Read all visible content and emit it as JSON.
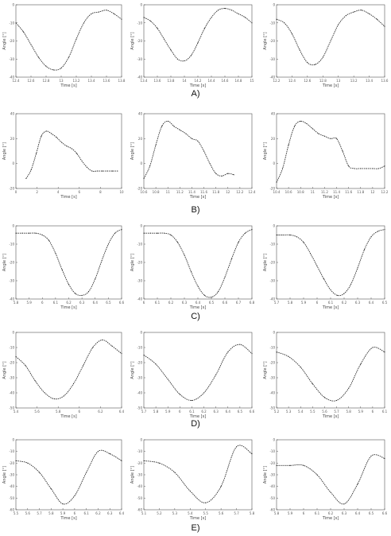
{
  "figure": {
    "row_labels": [
      "A)",
      "B)",
      "C)",
      "D)",
      "E)"
    ]
  },
  "chart_data": [
    {
      "id": "A1",
      "type": "line",
      "row": 0,
      "col": 0,
      "xlabel": "Time [s]",
      "ylabel": "Angle [°]",
      "xlim": [
        12.4,
        13.8
      ],
      "ylim": [
        -40,
        0
      ],
      "xticks": [
        "12.4",
        "12.6",
        "12.8",
        "13",
        "13.2",
        "13.4",
        "13.6",
        "13.8"
      ],
      "yticks": [
        "0",
        "-10",
        "-20",
        "-30",
        "-40"
      ],
      "x": [
        12.4,
        12.5,
        12.6,
        12.7,
        12.8,
        12.9,
        13.0,
        13.1,
        13.2,
        13.3,
        13.4,
        13.5,
        13.6,
        13.7,
        13.8
      ],
      "y": [
        -10,
        -15,
        -22,
        -29,
        -34,
        -36,
        -35,
        -29,
        -19,
        -10,
        -5,
        -4,
        -3,
        -5,
        -8
      ]
    },
    {
      "id": "A2",
      "type": "line",
      "row": 0,
      "col": 1,
      "xlabel": "Time [s]",
      "ylabel": "Angle [°]",
      "xlim": [
        13.4,
        15.0
      ],
      "ylim": [
        -40,
        0
      ],
      "xticks": [
        "13.4",
        "13.6",
        "13.8",
        "14",
        "14.2",
        "14.4",
        "14.6",
        "14.8",
        "15"
      ],
      "yticks": [
        "0",
        "-10",
        "-20",
        "-30",
        "-40"
      ],
      "x": [
        13.4,
        13.5,
        13.6,
        13.7,
        13.8,
        13.9,
        14.0,
        14.1,
        14.2,
        14.3,
        14.4,
        14.5,
        14.6,
        14.7,
        14.8,
        14.9,
        15.0
      ],
      "y": [
        -7,
        -9,
        -13,
        -19,
        -25,
        -30,
        -31,
        -28,
        -21,
        -13,
        -7,
        -3,
        -2,
        -3,
        -5,
        -7,
        -10
      ]
    },
    {
      "id": "A3",
      "type": "line",
      "row": 0,
      "col": 2,
      "xlabel": "Time [s]",
      "ylabel": "Angle [°]",
      "xlim": [
        12.2,
        13.6
      ],
      "ylim": [
        -40,
        0
      ],
      "xticks": [
        "12.2",
        "12.4",
        "12.6",
        "12.8",
        "13",
        "13.2",
        "13.4",
        "13.6"
      ],
      "yticks": [
        "0",
        "-10",
        "-20",
        "-30",
        "-40"
      ],
      "x": [
        12.2,
        12.3,
        12.4,
        12.5,
        12.6,
        12.7,
        12.8,
        12.9,
        13.0,
        13.1,
        13.2,
        13.3,
        13.4,
        13.5,
        13.6
      ],
      "y": [
        -8,
        -10,
        -16,
        -25,
        -32,
        -33,
        -29,
        -20,
        -11,
        -6,
        -4,
        -3,
        -5,
        -8,
        -12
      ]
    },
    {
      "id": "B1",
      "type": "line",
      "row": 1,
      "col": 0,
      "xlabel": "Time [s]",
      "ylabel": "Angle [°]",
      "xlim": [
        0,
        10.4
      ],
      "ylim": [
        -20,
        40
      ],
      "xticks": [
        "0",
        "2",
        "4",
        "6",
        "8",
        "10"
      ],
      "yticks": [
        "40",
        "20",
        "0",
        "-20"
      ],
      "x": [
        1,
        1.5,
        2,
        2.5,
        3,
        3.5,
        4,
        4.5,
        5,
        5.5,
        6,
        6.5,
        7,
        7.5,
        8,
        8.5,
        9,
        9.5,
        10
      ],
      "y": [
        -12,
        -5,
        8,
        22,
        26,
        24,
        21,
        17,
        14,
        12,
        8,
        2,
        -3,
        -6,
        -6,
        -6,
        -6,
        -6,
        -6
      ]
    },
    {
      "id": "B2",
      "type": "line",
      "row": 1,
      "col": 1,
      "xlabel": "Time [s]",
      "ylabel": "Angle [°]",
      "xlim": [
        10.6,
        12.4
      ],
      "ylim": [
        -20,
        40
      ],
      "xticks": [
        "10.6",
        "10.8",
        "11",
        "11.2",
        "11.4",
        "11.6",
        "11.8",
        "12",
        "12.2",
        "12.4"
      ],
      "yticks": [
        "40",
        "20",
        "0",
        "-20"
      ],
      "x": [
        10.6,
        10.7,
        10.8,
        10.9,
        11.0,
        11.1,
        11.2,
        11.3,
        11.4,
        11.5,
        11.6,
        11.7,
        11.8,
        11.9,
        12.0,
        12.1
      ],
      "y": [
        -12,
        -2,
        15,
        30,
        34,
        30,
        27,
        24,
        20,
        18,
        10,
        0,
        -8,
        -10,
        -8,
        -9
      ]
    },
    {
      "id": "B3",
      "type": "line",
      "row": 1,
      "col": 2,
      "xlabel": "Time [s]",
      "ylabel": "Angle [°]",
      "xlim": [
        10.4,
        12.2
      ],
      "ylim": [
        -20,
        40
      ],
      "xticks": [
        "10.4",
        "10.6",
        "10.8",
        "11",
        "11.2",
        "11.4",
        "11.6",
        "11.8",
        "12",
        "12.2"
      ],
      "yticks": [
        "40",
        "20",
        "0",
        "-20"
      ],
      "x": [
        10.4,
        10.5,
        10.6,
        10.7,
        10.8,
        10.9,
        11.0,
        11.1,
        11.2,
        11.3,
        11.4,
        11.5,
        11.6,
        11.7,
        11.8,
        11.9,
        12.0,
        12.1,
        12.2
      ],
      "y": [
        -15,
        -4,
        15,
        30,
        34,
        32,
        28,
        24,
        22,
        20,
        20,
        10,
        -2,
        -4,
        -4,
        -4,
        -4,
        -4,
        -2
      ]
    },
    {
      "id": "C1",
      "type": "line",
      "row": 2,
      "col": 0,
      "xlabel": "Time [s]",
      "ylabel": "Angle [°]",
      "xlim": [
        5.8,
        6.6
      ],
      "ylim": [
        -40,
        0
      ],
      "xticks": [
        "5.8",
        "5.9",
        "6",
        "6.1",
        "6.2",
        "6.3",
        "6.4",
        "6.5",
        "6.6"
      ],
      "yticks": [
        "0",
        "-10",
        "-20",
        "-30",
        "-40"
      ],
      "x": [
        5.8,
        5.85,
        5.9,
        5.95,
        6.0,
        6.05,
        6.1,
        6.15,
        6.2,
        6.25,
        6.3,
        6.35,
        6.4,
        6.45,
        6.5,
        6.55,
        6.6
      ],
      "y": [
        -4,
        -4,
        -4,
        -4,
        -5,
        -8,
        -15,
        -24,
        -32,
        -37,
        -38,
        -36,
        -29,
        -19,
        -10,
        -4,
        -2
      ]
    },
    {
      "id": "C2",
      "type": "line",
      "row": 2,
      "col": 1,
      "xlabel": "Time [s]",
      "ylabel": "Angle [°]",
      "xlim": [
        6.0,
        6.8
      ],
      "ylim": [
        -40,
        0
      ],
      "xticks": [
        "6",
        "6.1",
        "6.2",
        "6.3",
        "6.4",
        "6.5",
        "6.6",
        "6.7",
        "6.8"
      ],
      "yticks": [
        "0",
        "-10",
        "-20",
        "-30",
        "-40"
      ],
      "x": [
        6.0,
        6.05,
        6.1,
        6.15,
        6.2,
        6.25,
        6.3,
        6.35,
        6.4,
        6.45,
        6.5,
        6.55,
        6.6,
        6.65,
        6.7,
        6.75,
        6.8
      ],
      "y": [
        -4,
        -4,
        -4,
        -4,
        -5,
        -9,
        -16,
        -25,
        -33,
        -38,
        -39,
        -36,
        -28,
        -18,
        -9,
        -4,
        -2
      ]
    },
    {
      "id": "C3",
      "type": "line",
      "row": 2,
      "col": 2,
      "xlabel": "Time [s]",
      "ylabel": "Angle [°]",
      "xlim": [
        5.7,
        6.5
      ],
      "ylim": [
        -40,
        0
      ],
      "xticks": [
        "5.7",
        "5.8",
        "5.9",
        "6",
        "6.1",
        "6.2",
        "6.3",
        "6.4",
        "6.5"
      ],
      "yticks": [
        "0",
        "-10",
        "-20",
        "-30",
        "-40"
      ],
      "x": [
        5.7,
        5.75,
        5.8,
        5.85,
        5.9,
        5.95,
        6.0,
        6.05,
        6.1,
        6.15,
        6.2,
        6.25,
        6.3,
        6.35,
        6.4,
        6.45,
        6.5
      ],
      "y": [
        -5,
        -5,
        -5,
        -6,
        -9,
        -15,
        -22,
        -29,
        -35,
        -38,
        -37,
        -32,
        -23,
        -13,
        -6,
        -3,
        -2
      ]
    },
    {
      "id": "D1",
      "type": "line",
      "row": 3,
      "col": 0,
      "xlabel": "Time [s]",
      "ylabel": "Angle [°]",
      "xlim": [
        5.4,
        6.5
      ],
      "ylim": [
        -50,
        0
      ],
      "xticks": [
        "5.4",
        "5.6",
        "5.8",
        "6",
        "6.2",
        "6.4"
      ],
      "yticks": [
        "0",
        "-10",
        "-20",
        "-30",
        "-40",
        "-50"
      ],
      "x": [
        5.4,
        5.5,
        5.6,
        5.7,
        5.8,
        5.9,
        6.0,
        6.1,
        6.2,
        6.3,
        6.4,
        6.5
      ],
      "y": [
        -16,
        -22,
        -32,
        -40,
        -44,
        -42,
        -34,
        -22,
        -10,
        -5,
        -9,
        -14
      ]
    },
    {
      "id": "D2",
      "type": "line",
      "row": 3,
      "col": 1,
      "xlabel": "Time [s]",
      "ylabel": "Angle [°]",
      "xlim": [
        5.7,
        6.6
      ],
      "ylim": [
        -50,
        0
      ],
      "xticks": [
        "5.7",
        "5.8",
        "5.9",
        "6",
        "6.1",
        "6.2",
        "6.3",
        "6.4",
        "6.5",
        "6.6"
      ],
      "yticks": [
        "0",
        "-10",
        "-20",
        "-30",
        "-40",
        "-50"
      ],
      "x": [
        5.7,
        5.8,
        5.9,
        6.0,
        6.1,
        6.2,
        6.3,
        6.4,
        6.5,
        6.6
      ],
      "y": [
        -15,
        -21,
        -31,
        -41,
        -45,
        -40,
        -28,
        -13,
        -8,
        -14
      ]
    },
    {
      "id": "D3",
      "type": "line",
      "row": 3,
      "col": 2,
      "xlabel": "Time [s]",
      "ylabel": "Angle [°]",
      "xlim": [
        5.2,
        6.1
      ],
      "ylim": [
        -50,
        0
      ],
      "xticks": [
        "5.2",
        "5.3",
        "5.4",
        "5.5",
        "5.6",
        "5.7",
        "5.8",
        "5.9",
        "6",
        "6.1"
      ],
      "yticks": [
        "0",
        "-10",
        "-20",
        "-30",
        "-40",
        "-50"
      ],
      "x": [
        5.2,
        5.3,
        5.4,
        5.5,
        5.6,
        5.7,
        5.8,
        5.9,
        6.0,
        6.1
      ],
      "y": [
        -13,
        -16,
        -23,
        -34,
        -43,
        -45,
        -37,
        -21,
        -10,
        -13
      ]
    },
    {
      "id": "E1",
      "type": "line",
      "row": 4,
      "col": 0,
      "xlabel": "Time [s]",
      "ylabel": "Angle [°]",
      "xlim": [
        5.5,
        6.4
      ],
      "ylim": [
        -60,
        0
      ],
      "xticks": [
        "5.5",
        "5.6",
        "5.7",
        "5.8",
        "5.9",
        "6",
        "6.1",
        "6.2",
        "6.3",
        "6.4"
      ],
      "yticks": [
        "0",
        "-10",
        "-20",
        "-30",
        "-40",
        "-50",
        "-60"
      ],
      "x": [
        5.5,
        5.6,
        5.7,
        5.8,
        5.9,
        6.0,
        6.1,
        6.2,
        6.3,
        6.4
      ],
      "y": [
        -18,
        -20,
        -28,
        -42,
        -55,
        -48,
        -28,
        -10,
        -12,
        -18
      ]
    },
    {
      "id": "E2",
      "type": "line",
      "row": 4,
      "col": 1,
      "xlabel": "Time [s]",
      "ylabel": "Angle [°]",
      "xlim": [
        5.1,
        5.8
      ],
      "ylim": [
        -60,
        0
      ],
      "xticks": [
        "5.1",
        "5.2",
        "5.3",
        "5.4",
        "5.5",
        "5.6",
        "5.7",
        "5.8"
      ],
      "yticks": [
        "0",
        "-10",
        "-20",
        "-30",
        "-40",
        "-50",
        "-60"
      ],
      "x": [
        5.1,
        5.2,
        5.3,
        5.4,
        5.5,
        5.6,
        5.7,
        5.8
      ],
      "y": [
        -18,
        -20,
        -28,
        -44,
        -54,
        -40,
        -6,
        -12
      ]
    },
    {
      "id": "E3",
      "type": "line",
      "row": 4,
      "col": 2,
      "xlabel": "Time [s]",
      "ylabel": "Angle [°]",
      "xlim": [
        5.8,
        6.6
      ],
      "ylim": [
        -60,
        0
      ],
      "xticks": [
        "5.8",
        "5.9",
        "6",
        "6.1",
        "6.2",
        "6.3",
        "6.4",
        "6.5",
        "6.6"
      ],
      "yticks": [
        "0",
        "-10",
        "-20",
        "-30",
        "-40",
        "-50",
        "-60"
      ],
      "x": [
        5.8,
        5.9,
        6.0,
        6.1,
        6.2,
        6.3,
        6.4,
        6.5,
        6.6
      ],
      "y": [
        -22,
        -22,
        -22,
        -30,
        -45,
        -55,
        -38,
        -14,
        -16
      ]
    }
  ]
}
